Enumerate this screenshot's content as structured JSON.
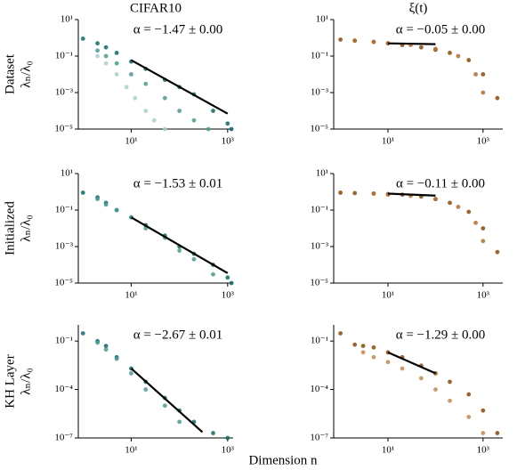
{
  "column_titles": [
    "CIFAR10",
    "ξ(t)"
  ],
  "row_labels": [
    "Dataset",
    "Initialized",
    "KH Layer"
  ],
  "y_label": "λₙ/λ₀",
  "x_label": "Dimension n",
  "chart_data": [
    {
      "type": "scatter",
      "log_x": true,
      "log_y": true,
      "annotation": "α = −1.47 ± 0.00",
      "xlim": [
        0.8,
        1300
      ],
      "xticks": [
        {
          "value": 10,
          "label": "10¹"
        },
        {
          "value": 1000,
          "label": "10³"
        }
      ],
      "ylim": [
        1e-05,
        10
      ],
      "yticks": [
        {
          "value": 10,
          "label": "10¹"
        },
        {
          "value": 0.1,
          "label": "10⁻¹"
        },
        {
          "value": 0.001,
          "label": "10⁻³"
        },
        {
          "value": 1e-05,
          "label": "10⁻⁵"
        }
      ],
      "series": [
        {
          "color": "#0f6b66",
          "x": [
            1,
            2,
            3,
            5,
            10,
            20,
            50,
            100,
            200,
            500,
            1000,
            1200
          ],
          "values": [
            0.9,
            0.5,
            0.3,
            0.15,
            0.05,
            0.02,
            0.005,
            0.002,
            0.0008,
            0.0001,
            2e-05,
            1e-05
          ]
        },
        {
          "color": "#4a9a92",
          "x": [
            2,
            3,
            5,
            10,
            20,
            50,
            100,
            200,
            400
          ],
          "values": [
            0.2,
            0.1,
            0.04,
            0.01,
            0.003,
            0.0005,
            0.0001,
            3e-05,
            1e-05
          ]
        },
        {
          "color": "#a8cfca",
          "x": [
            2,
            3,
            5,
            8,
            12,
            20,
            30,
            50
          ],
          "values": [
            0.1,
            0.04,
            0.01,
            0.002,
            0.0005,
            0.0001,
            3e-05,
            1e-05
          ]
        },
        {
          "color": "#000000",
          "fit": true,
          "x": [
            10,
            1000
          ],
          "values": [
            0.06,
            7e-05
          ]
        }
      ]
    },
    {
      "type": "scatter",
      "log_x": true,
      "log_y": true,
      "annotation": "α = −0.05 ± 0.00",
      "xlim": [
        0.72,
        2600
      ],
      "xticks": [
        {
          "value": 10,
          "label": "10¹"
        },
        {
          "value": 1000,
          "label": "10³"
        }
      ],
      "ylim": [
        1e-05,
        10
      ],
      "yticks": [
        {
          "value": 10,
          "label": "10¹"
        },
        {
          "value": 0.1,
          "label": "10⁻¹"
        },
        {
          "value": 0.001,
          "label": "10⁻³"
        },
        {
          "value": 1e-05,
          "label": "10⁻⁵"
        }
      ],
      "series": [
        {
          "color": "#8b4a0b",
          "x": [
            1,
            2,
            5,
            10,
            20,
            50,
            100,
            200,
            500,
            1000,
            2000
          ],
          "values": [
            0.8,
            0.7,
            0.6,
            0.5,
            0.4,
            0.3,
            0.22,
            0.15,
            0.06,
            0.01,
            0.0005
          ]
        },
        {
          "color": "#b07030",
          "x": [
            2,
            5,
            10,
            30,
            100,
            300,
            700,
            1000
          ],
          "values": [
            0.7,
            0.6,
            0.5,
            0.4,
            0.25,
            0.1,
            0.01,
            0.001
          ]
        },
        {
          "color": "#000000",
          "fit": true,
          "x": [
            10,
            100
          ],
          "values": [
            0.5,
            0.45
          ]
        }
      ]
    },
    {
      "type": "scatter",
      "log_x": true,
      "log_y": true,
      "annotation": "α = −1.53 ± 0.01",
      "xlim": [
        0.8,
        1300
      ],
      "xticks": [
        {
          "value": 10,
          "label": "10¹"
        },
        {
          "value": 1000,
          "label": "10³"
        }
      ],
      "ylim": [
        1e-05,
        10
      ],
      "yticks": [
        {
          "value": 10,
          "label": "10¹"
        },
        {
          "value": 0.1,
          "label": "10⁻¹"
        },
        {
          "value": 0.001,
          "label": "10⁻³"
        },
        {
          "value": 1e-05,
          "label": "10⁻⁵"
        }
      ],
      "series": [
        {
          "color": "#0f6b66",
          "x": [
            1,
            2,
            3,
            5,
            10,
            20,
            50,
            100,
            200,
            500,
            1000,
            1200
          ],
          "values": [
            0.9,
            0.5,
            0.25,
            0.1,
            0.04,
            0.015,
            0.004,
            0.001,
            0.0004,
            0.0001,
            2e-05,
            1e-05
          ]
        },
        {
          "color": "#4a9a92",
          "x": [
            2,
            3,
            5,
            10,
            20,
            50,
            100,
            200,
            500
          ],
          "values": [
            0.4,
            0.2,
            0.1,
            0.04,
            0.01,
            0.003,
            0.0006,
            0.0002,
            3e-05
          ]
        },
        {
          "color": "#000000",
          "fit": true,
          "x": [
            10,
            1000
          ],
          "values": [
            0.04,
            3.5e-05
          ]
        }
      ]
    },
    {
      "type": "scatter",
      "log_x": true,
      "log_y": true,
      "annotation": "α = −0.11 ± 0.00",
      "xlim": [
        0.72,
        2600
      ],
      "xticks": [
        {
          "value": 10,
          "label": "10¹"
        },
        {
          "value": 1000,
          "label": "10³"
        }
      ],
      "ylim": [
        1e-05,
        10
      ],
      "yticks": [
        {
          "value": 10,
          "label": "10¹"
        },
        {
          "value": 0.1,
          "label": "10⁻¹"
        },
        {
          "value": 0.001,
          "label": "10⁻³"
        },
        {
          "value": 1e-05,
          "label": "10⁻⁵"
        }
      ],
      "series": [
        {
          "color": "#8b4a0b",
          "x": [
            1,
            2,
            5,
            10,
            20,
            50,
            100,
            200,
            500,
            1000,
            2000
          ],
          "values": [
            0.9,
            0.85,
            0.8,
            0.75,
            0.7,
            0.55,
            0.4,
            0.25,
            0.08,
            0.01,
            0.0005
          ]
        },
        {
          "color": "#b07030",
          "x": [
            5,
            10,
            30,
            100,
            300,
            700,
            1000
          ],
          "values": [
            0.8,
            0.7,
            0.6,
            0.4,
            0.15,
            0.02,
            0.002
          ]
        },
        {
          "color": "#000000",
          "fit": true,
          "x": [
            10,
            100
          ],
          "values": [
            0.8,
            0.62
          ]
        }
      ]
    },
    {
      "type": "scatter",
      "log_x": true,
      "log_y": true,
      "annotation": "α = −2.67 ± 0.01",
      "xlim": [
        0.8,
        1300
      ],
      "xticks": [
        {
          "value": 10,
          "label": "10¹"
        },
        {
          "value": 1000,
          "label": "10³"
        }
      ],
      "ylim": [
        1e-07,
        1
      ],
      "yticks": [
        {
          "value": 0.1,
          "label": "10⁻¹"
        },
        {
          "value": 0.0001,
          "label": "10⁻⁴"
        },
        {
          "value": 1e-07,
          "label": "10⁻⁷"
        }
      ],
      "series": [
        {
          "color": "#0f6b66",
          "x": [
            1,
            2,
            3,
            5,
            10,
            20,
            50,
            100,
            200,
            500,
            1000
          ],
          "values": [
            0.3,
            0.1,
            0.05,
            0.01,
            0.002,
            0.0003,
            3e-05,
            5e-06,
            1e-06,
            2e-07,
            1e-07
          ]
        },
        {
          "color": "#4a9a92",
          "x": [
            2,
            3,
            5,
            10,
            20,
            50,
            100
          ],
          "values": [
            0.08,
            0.03,
            0.008,
            0.001,
            0.0001,
            1e-05,
            1e-06
          ]
        },
        {
          "color": "#000000",
          "fit": true,
          "x": [
            10,
            300
          ],
          "values": [
            0.002,
            2.3e-07
          ]
        }
      ]
    },
    {
      "type": "scatter",
      "log_x": true,
      "log_y": true,
      "annotation": "α = −1.29 ± 0.00",
      "xlim": [
        0.72,
        2600
      ],
      "xticks": [
        {
          "value": 10,
          "label": "10¹"
        },
        {
          "value": 1000,
          "label": "10³"
        }
      ],
      "ylim": [
        1e-07,
        1
      ],
      "yticks": [
        {
          "value": 0.1,
          "label": "10⁻¹"
        },
        {
          "value": 0.0001,
          "label": "10⁻⁴"
        },
        {
          "value": 1e-07,
          "label": "10⁻⁷"
        }
      ],
      "series": [
        {
          "color": "#8b4a0b",
          "x": [
            1,
            2,
            3,
            5,
            10,
            20,
            50,
            100,
            200,
            500,
            1000,
            2000
          ],
          "values": [
            0.3,
            0.06,
            0.05,
            0.04,
            0.02,
            0.01,
            0.003,
            0.001,
            0.0003,
            5e-05,
            5e-06,
            2e-07
          ]
        },
        {
          "color": "#c48a50",
          "x": [
            3,
            5,
            10,
            20,
            50,
            100,
            200,
            500,
            1000
          ],
          "values": [
            0.02,
            0.01,
            0.005,
            0.002,
            0.0005,
            0.0001,
            2e-05,
            2e-06,
            2e-07
          ]
        },
        {
          "color": "#000000",
          "fit": true,
          "x": [
            10,
            100
          ],
          "values": [
            0.02,
            0.001
          ]
        }
      ]
    }
  ]
}
